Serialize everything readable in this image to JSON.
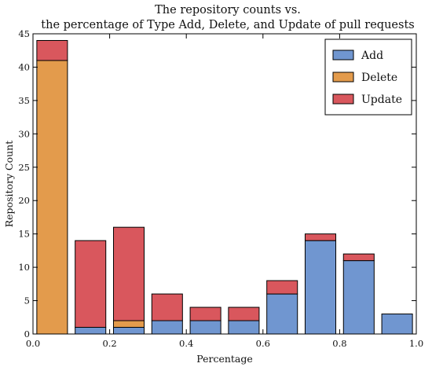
{
  "chart_data": {
    "type": "bar",
    "stacked": true,
    "title": [
      "The repository counts vs.",
      "the percentage of Type Add, Delete, and Update of pull requests"
    ],
    "xlabel": "Percentage",
    "ylabel": "Repository Count",
    "xlim": [
      0.0,
      1.0
    ],
    "ylim": [
      0,
      45
    ],
    "bin_width": 0.1,
    "bar_width": 0.08,
    "x": [
      0.0,
      0.1,
      0.2,
      0.3,
      0.4,
      0.5,
      0.6,
      0.7,
      0.8,
      0.9
    ],
    "xticks": [
      0.0,
      0.2,
      0.4,
      0.6,
      0.8,
      1.0
    ],
    "xtick_labels": [
      "0.0",
      "0.2",
      "0.4",
      "0.6",
      "0.8",
      "1.0"
    ],
    "yticks": [
      0,
      5,
      10,
      15,
      20,
      25,
      30,
      35,
      40,
      45
    ],
    "ytick_labels": [
      "0",
      "5",
      "10",
      "15",
      "20",
      "25",
      "30",
      "35",
      "40",
      "45"
    ],
    "grid": false,
    "legend_position": "top-right",
    "series": [
      {
        "name": "Add",
        "color": "#7096d0",
        "values": [
          0,
          1,
          1,
          2,
          2,
          2,
          6,
          14,
          11,
          3
        ]
      },
      {
        "name": "Delete",
        "color": "#e39b4c",
        "values": [
          41,
          0,
          1,
          0,
          0,
          0,
          0,
          0,
          0,
          0
        ]
      },
      {
        "name": "Update",
        "color": "#d9575d",
        "values": [
          3,
          13,
          14,
          4,
          2,
          2,
          2,
          1,
          1,
          0
        ]
      }
    ]
  }
}
